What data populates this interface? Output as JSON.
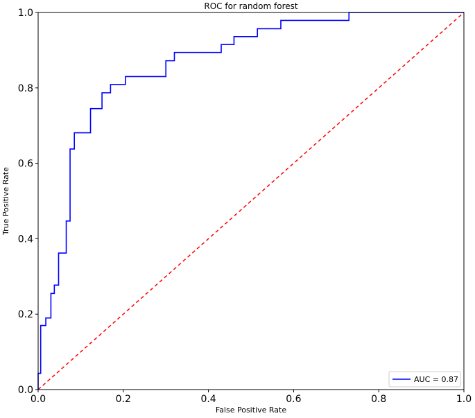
{
  "chart_data": {
    "type": "line",
    "title": "ROC for random forest",
    "xlabel": "False Positive Rate",
    "ylabel": "True Positive Rate",
    "xlim": [
      0,
      1
    ],
    "ylim": [
      0,
      1
    ],
    "x_ticks": [
      "0.0",
      "0.2",
      "0.4",
      "0.6",
      "0.8",
      "1.0"
    ],
    "y_ticks": [
      "0.0",
      "0.2",
      "0.4",
      "0.6",
      "0.8",
      "1.0"
    ],
    "grid": false,
    "legend_position": "lower-right",
    "series": [
      {
        "name": "AUC = 0.87",
        "color": "#0000ff",
        "style": "solid",
        "x": [
          0.0,
          0.0,
          0.006,
          0.006,
          0.018,
          0.018,
          0.03,
          0.03,
          0.038,
          0.038,
          0.048,
          0.048,
          0.066,
          0.066,
          0.075,
          0.075,
          0.085,
          0.085,
          0.123,
          0.123,
          0.15,
          0.15,
          0.17,
          0.17,
          0.205,
          0.205,
          0.3,
          0.3,
          0.32,
          0.32,
          0.43,
          0.43,
          0.46,
          0.46,
          0.515,
          0.515,
          0.57,
          0.57,
          0.73,
          0.73,
          1.0
        ],
        "y": [
          0.0,
          0.043,
          0.043,
          0.17,
          0.17,
          0.19,
          0.19,
          0.255,
          0.255,
          0.277,
          0.277,
          0.362,
          0.362,
          0.447,
          0.447,
          0.638,
          0.638,
          0.681,
          0.681,
          0.745,
          0.745,
          0.787,
          0.787,
          0.809,
          0.809,
          0.83,
          0.83,
          0.872,
          0.872,
          0.894,
          0.894,
          0.915,
          0.915,
          0.936,
          0.936,
          0.957,
          0.957,
          0.979,
          0.979,
          1.0,
          1.0
        ]
      },
      {
        "name": "",
        "color": "#ff0000",
        "style": "dashed",
        "x": [
          0,
          1
        ],
        "y": [
          0,
          1
        ]
      }
    ]
  }
}
